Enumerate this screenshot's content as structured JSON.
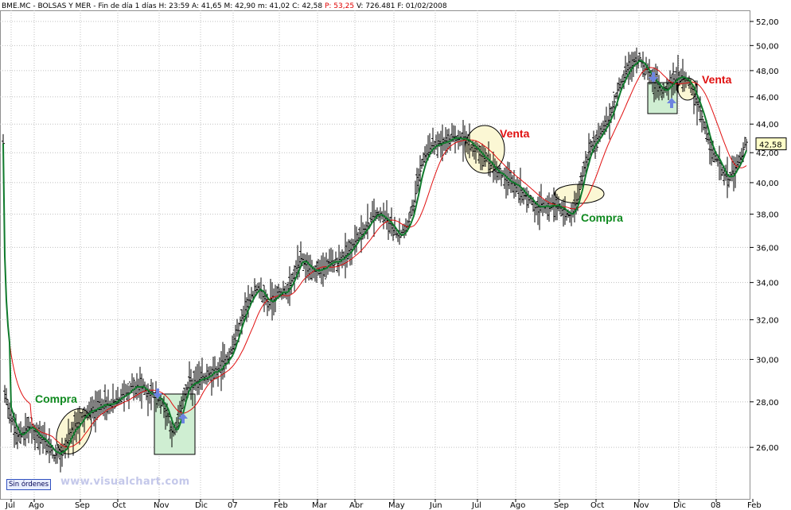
{
  "header": {
    "symbol": "BME.MC",
    "name": "BOLSAS Y MER",
    "period": "Fin de día 1 días",
    "hour": "H: 23:59",
    "open": "A: 41,65",
    "high": "M: 42,90",
    "low": "m: 41,02",
    "close": "C: 42,58",
    "p": "P: 53,25",
    "volume": "V: 726.481",
    "date": "F: 01/02/2008"
  },
  "status": {
    "orders_button": "Sin órdenes"
  },
  "watermark": "www.visualchart.com",
  "colors": {
    "price_bars": "#000000",
    "fast_ma": "#107a2c",
    "slow_ma": "#e01010",
    "buy_text": "#108a20",
    "sell_text": "#e01010",
    "signal_box": "#cfeed2",
    "ellipse": "#fbf7d4",
    "arrow": "#6d84e0",
    "grid": "#c0c0c0"
  },
  "chart_data": {
    "type": "ohlc",
    "title": "",
    "y_ticks": [
      "26,00",
      "28,00",
      "30,00",
      "32,00",
      "34,00",
      "36,00",
      "38,00",
      "40,00",
      "42,00",
      "44,00",
      "46,00",
      "48,00",
      "50,00",
      "52,00"
    ],
    "ylim": [
      24.5,
      52.5
    ],
    "y_scale": "log",
    "x_ticks": [
      "Jul",
      "Ago",
      "Sep",
      "Oct",
      "Nov",
      "Dic",
      "07",
      "Feb",
      "Mar",
      "Abr",
      "May",
      "Jun",
      "Jul",
      "Ago",
      "Sep",
      "Oct",
      "Nov",
      "Dic",
      "08",
      "Feb"
    ],
    "last_price_label": "42,58",
    "grid": true,
    "series": [
      {
        "kind": "price_bars"
      },
      {
        "kind": "fast_moving_average"
      },
      {
        "kind": "slow_moving_average"
      }
    ],
    "annotations": [
      "Compra",
      "Compra",
      "Venta",
      "Venta"
    ]
  }
}
